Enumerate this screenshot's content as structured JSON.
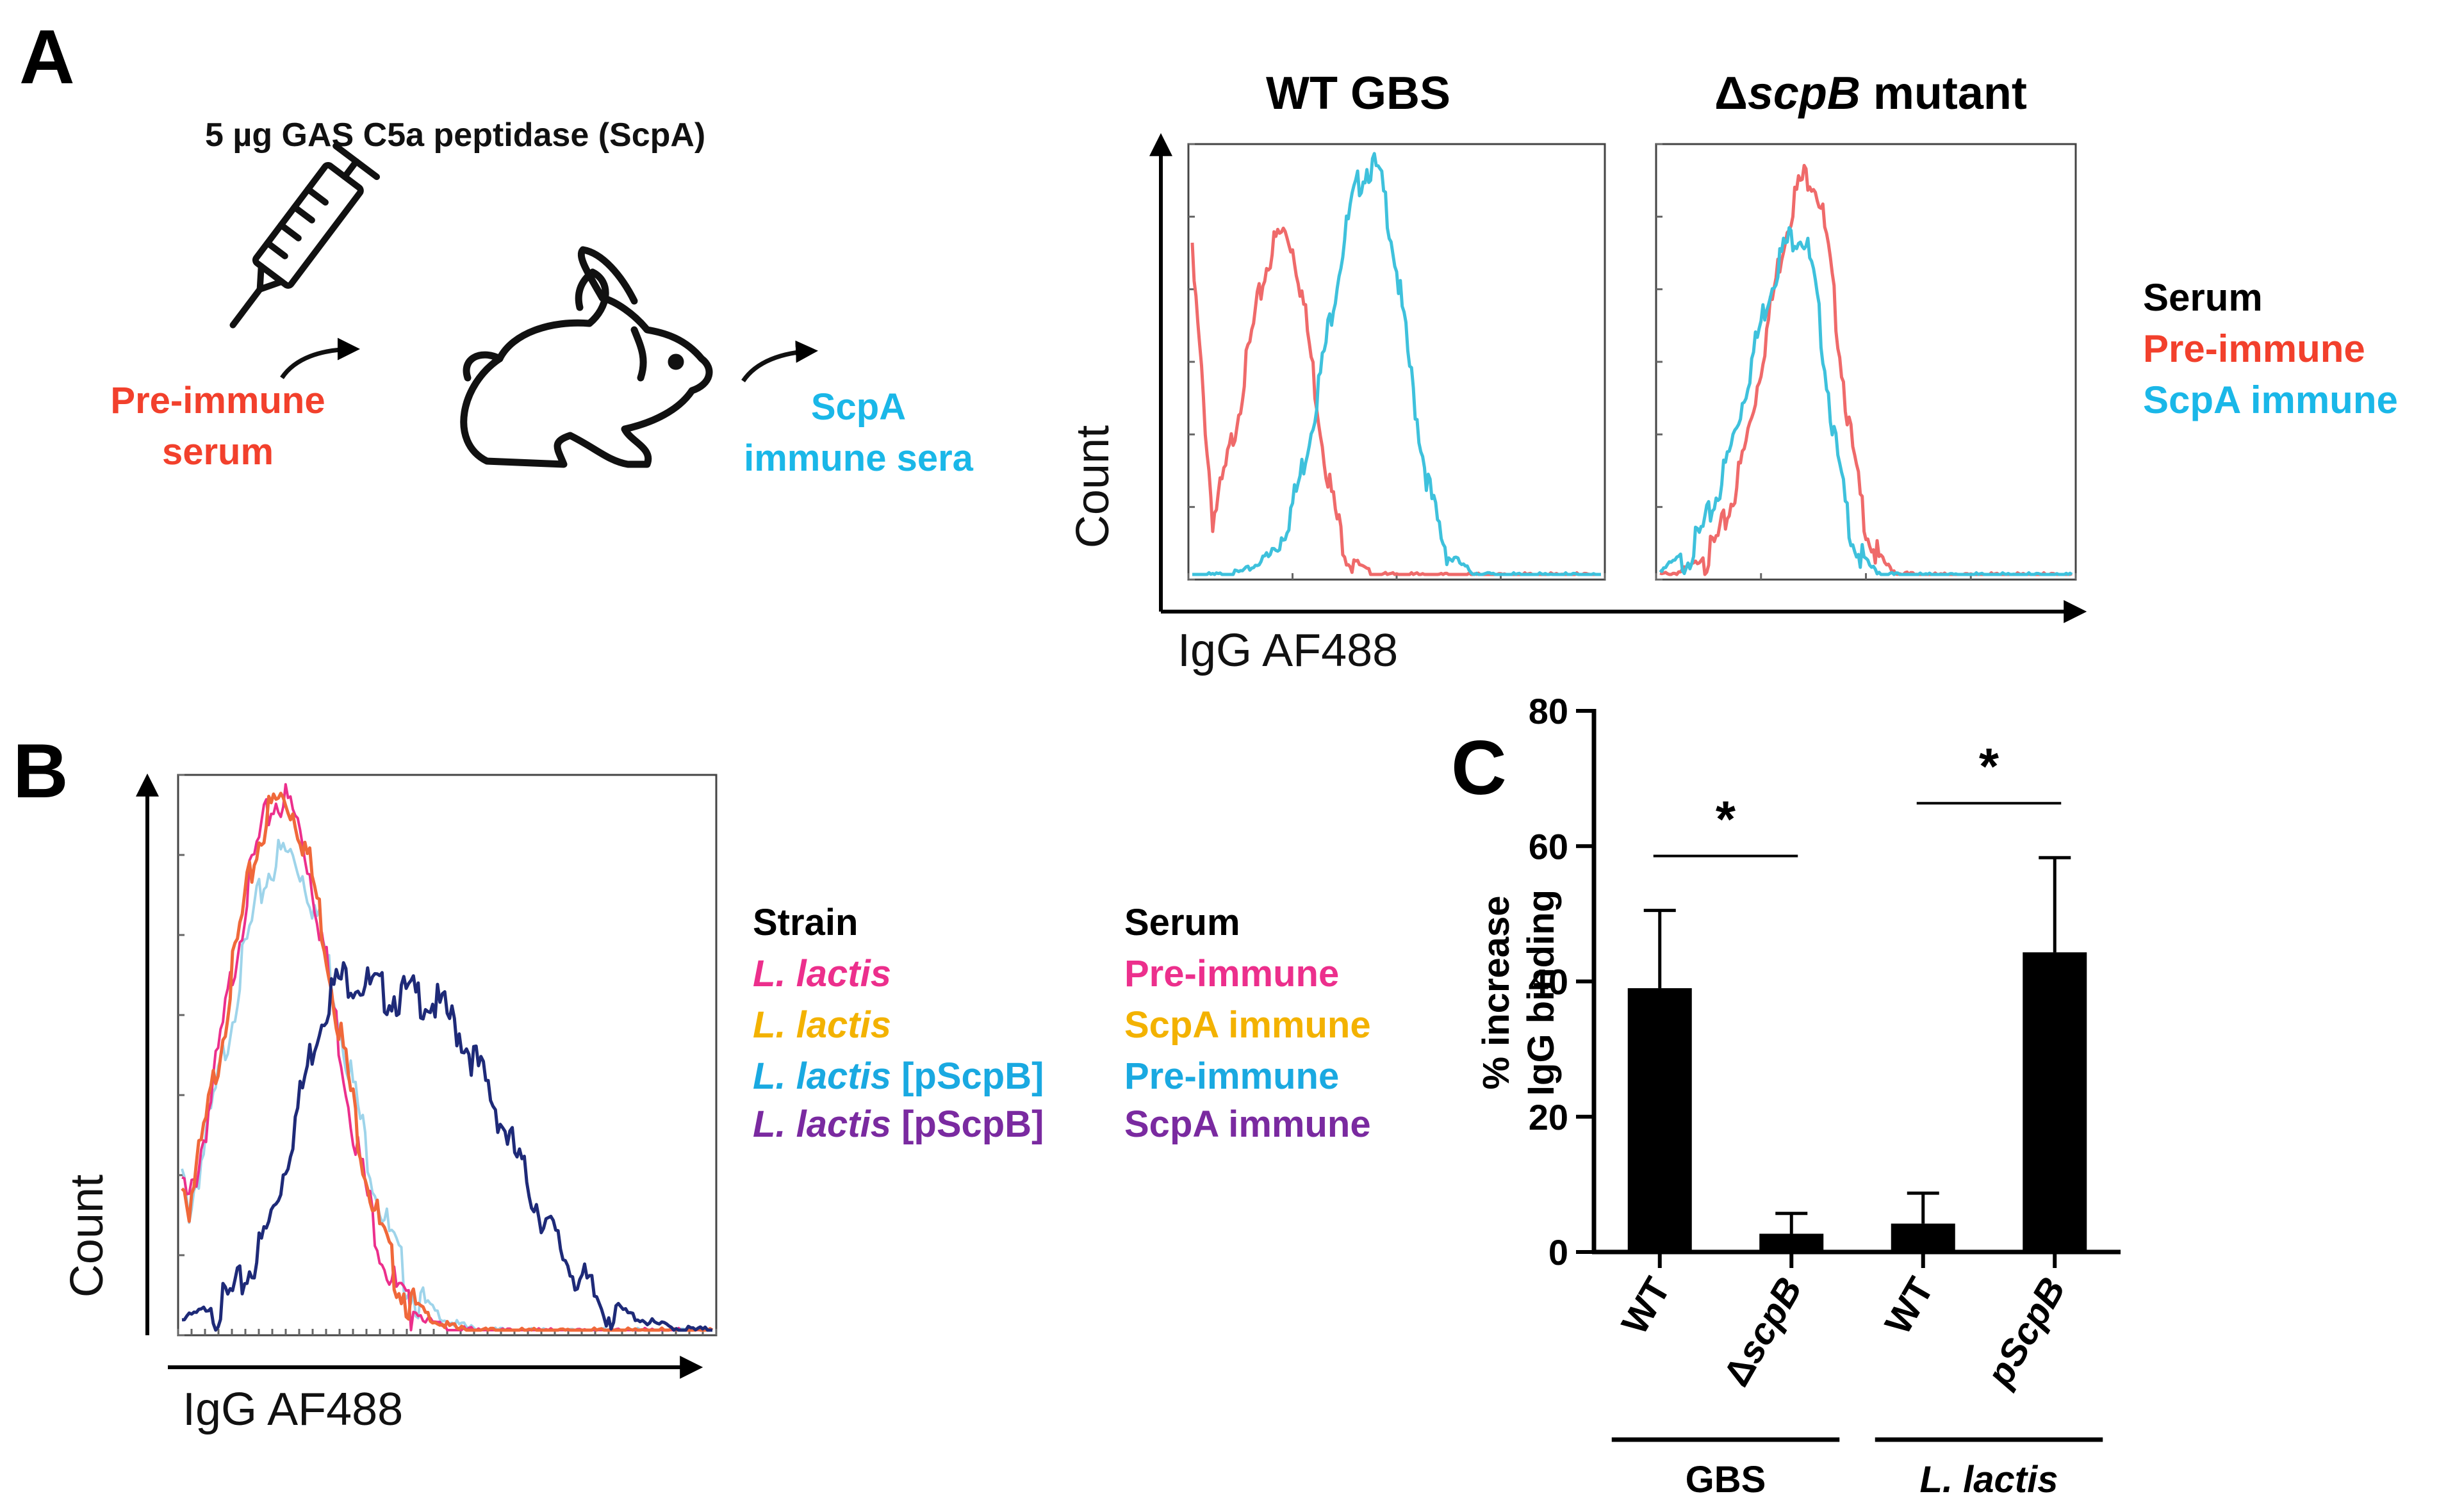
{
  "panel_labels": {
    "a": "A",
    "b": "B",
    "c": "C"
  },
  "colors": {
    "black": "#000000",
    "red": "#f2402c",
    "red_line": "#ef6a6a",
    "cyan": "#1ab7e8",
    "cyan_line": "#3ec1dc",
    "pink": "#ec2f8c",
    "orange_text": "#f3b200",
    "orange_line": "#f0683a",
    "blue_text": "#1aa9e1",
    "lightblue_line": "#9ed4ea",
    "purple": "#7a2aa0",
    "navy_line": "#1e2a78"
  },
  "schematic": {
    "antigen": "5 µg GAS C5a peptidase (ScpA)",
    "pre_immune_line1": "Pre-immune",
    "pre_immune_line2": "serum",
    "immune_line1": "ScpA",
    "immune_line2": "immune sera",
    "icons": [
      "syringe-icon",
      "rabbit-icon",
      "curved-arrow-icon"
    ]
  },
  "panel_a": {
    "title_wt": "WT GBS",
    "title_mut_delta": "Δ",
    "title_mut_gene": "scpB",
    "title_mut_rest": " mutant",
    "ylabel": "Count",
    "xlabel": "IgG AF488",
    "legend_title": "Serum",
    "legend_items": [
      "Pre-immune",
      "ScpA immune"
    ]
  },
  "panel_b": {
    "ylabel": "Count",
    "xlabel": "IgG AF488",
    "strain_title": "Strain",
    "serum_title": "Serum",
    "rows": [
      {
        "strain": "L. lactis",
        "plasmid": "",
        "serum": "Pre-immune"
      },
      {
        "strain": "L. lactis",
        "plasmid": "",
        "serum": "ScpA immune"
      },
      {
        "strain": "L. lactis",
        "plasmid": " [pScpB]",
        "serum": "Pre-immune"
      },
      {
        "strain": "L. lactis",
        "plasmid": " [pScpB]",
        "serum": "ScpA immune"
      }
    ]
  },
  "chart_data": [
    {
      "type": "line",
      "title": "WT GBS",
      "xlabel": "IgG AF488",
      "ylabel": "Count",
      "x_scale": "log (unlabeled ticks)",
      "series": [
        {
          "name": "Pre-immune",
          "peak_x": 0.9,
          "peak_y": 0.84
        },
        {
          "name": "ScpA immune",
          "peak_x": 1.75,
          "peak_y": 1.0
        }
      ]
    },
    {
      "type": "line",
      "title": "ΔscpB mutant",
      "xlabel": "IgG AF488",
      "ylabel": "Count",
      "series": [
        {
          "name": "Pre-immune",
          "peak_x": 1.45,
          "peak_y": 0.98
        },
        {
          "name": "ScpA immune",
          "peak_x": 1.35,
          "peak_y": 0.84
        }
      ]
    },
    {
      "type": "line",
      "title": "",
      "xlabel": "IgG AF488",
      "ylabel": "Count",
      "series": [
        {
          "name": "L. lactis / Pre-immune",
          "peak_x": 0.75,
          "peak_y": 1.0
        },
        {
          "name": "L. lactis / ScpA immune",
          "peak_x": 0.75,
          "peak_y": 1.0
        },
        {
          "name": "L. lactis [pScpB] / Pre-immune",
          "peak_x": 0.78,
          "peak_y": 0.9
        },
        {
          "name": "L. lactis [pScpB] / ScpA immune",
          "peak_x": 1.8,
          "peak_y": 0.63
        }
      ]
    },
    {
      "type": "bar",
      "title": "",
      "ylabel_line1": "% increase",
      "ylabel_line2": "IgG binding",
      "ylim": [
        0,
        80
      ],
      "yticks": [
        "0",
        "20",
        "40",
        "60",
        "80"
      ],
      "categories": [
        "WT",
        "ΔscpB",
        "WT",
        "pScpB"
      ],
      "values": [
        39,
        2.7,
        4.2,
        44.3
      ],
      "errors": [
        11.5,
        3.0,
        4.5,
        14.0
      ],
      "groups": [
        {
          "label": "GBS",
          "categories": [
            0,
            1
          ]
        },
        {
          "label": "L. lactis",
          "categories": [
            2,
            3
          ]
        }
      ],
      "significance": [
        {
          "pair": [
            0,
            1
          ],
          "label": "*"
        },
        {
          "pair": [
            2,
            3
          ],
          "label": "*"
        }
      ]
    }
  ]
}
